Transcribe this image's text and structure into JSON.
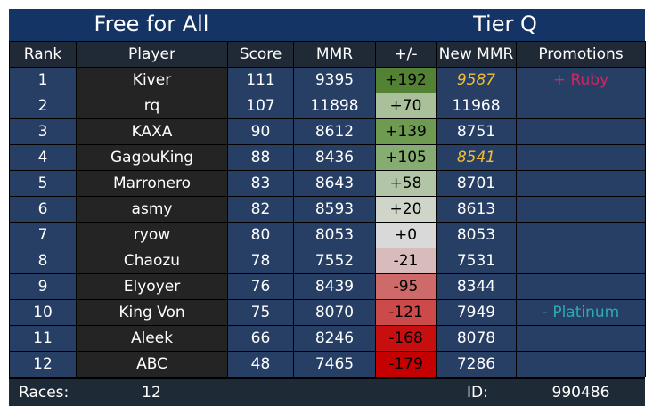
{
  "header": {
    "mode": "Free for All",
    "tier": "Tier Q"
  },
  "columns": [
    "Rank",
    "Player",
    "Score",
    "MMR",
    "+/-",
    "New MMR",
    "Promotions"
  ],
  "rows": [
    {
      "rank": "1",
      "player": "Kiver",
      "score": "111",
      "mmr": "9395",
      "delta": "+192",
      "new_mmr": "9587",
      "promotion": "+ Ruby",
      "delta_color": "#548235",
      "new_mmr_highlight": true,
      "promotion_color": "#d6245f"
    },
    {
      "rank": "2",
      "player": "rq",
      "score": "107",
      "mmr": "11898",
      "delta": "+70",
      "new_mmr": "11968",
      "promotion": "",
      "delta_color": "#a9c09a",
      "new_mmr_highlight": false,
      "promotion_color": ""
    },
    {
      "rank": "3",
      "player": "KAXA",
      "score": "90",
      "mmr": "8612",
      "delta": "+139",
      "new_mmr": "8751",
      "promotion": "",
      "delta_color": "#6e9a52",
      "new_mmr_highlight": false,
      "promotion_color": ""
    },
    {
      "rank": "4",
      "player": "GagouKing",
      "score": "88",
      "mmr": "8436",
      "delta": "+105",
      "new_mmr": "8541",
      "promotion": "",
      "delta_color": "#87ac72",
      "new_mmr_highlight": true,
      "promotion_color": ""
    },
    {
      "rank": "5",
      "player": "Marronero",
      "score": "83",
      "mmr": "8643",
      "delta": "+58",
      "new_mmr": "8701",
      "promotion": "",
      "delta_color": "#b3c5a7",
      "new_mmr_highlight": false,
      "promotion_color": ""
    },
    {
      "rank": "6",
      "player": "asmy",
      "score": "82",
      "mmr": "8593",
      "delta": "+20",
      "new_mmr": "8613",
      "promotion": "",
      "delta_color": "#cfd6c9",
      "new_mmr_highlight": false,
      "promotion_color": ""
    },
    {
      "rank": "7",
      "player": "ryow",
      "score": "80",
      "mmr": "8053",
      "delta": "+0",
      "new_mmr": "8053",
      "promotion": "",
      "delta_color": "#d9d9d9",
      "new_mmr_highlight": false,
      "promotion_color": ""
    },
    {
      "rank": "8",
      "player": "Chaozu",
      "score": "78",
      "mmr": "7552",
      "delta": "-21",
      "new_mmr": "7531",
      "promotion": "",
      "delta_color": "#d8bcbc",
      "new_mmr_highlight": false,
      "promotion_color": ""
    },
    {
      "rank": "9",
      "player": "Elyoyer",
      "score": "76",
      "mmr": "8439",
      "delta": "-95",
      "new_mmr": "8344",
      "promotion": "",
      "delta_color": "#cf6a6a",
      "new_mmr_highlight": false,
      "promotion_color": ""
    },
    {
      "rank": "10",
      "player": "King Von",
      "score": "75",
      "mmr": "8070",
      "delta": "-121",
      "new_mmr": "7949",
      "promotion": "- Platinum",
      "delta_color": "#cd4a4a",
      "new_mmr_highlight": false,
      "promotion_color": "#2eaab0"
    },
    {
      "rank": "11",
      "player": "Aleek",
      "score": "66",
      "mmr": "8246",
      "delta": "-168",
      "new_mmr": "8078",
      "promotion": "",
      "delta_color": "#c80f0f",
      "new_mmr_highlight": false,
      "promotion_color": ""
    },
    {
      "rank": "12",
      "player": "ABC",
      "score": "48",
      "mmr": "7465",
      "delta": "-179",
      "new_mmr": "7286",
      "promotion": "",
      "delta_color": "#c50000",
      "new_mmr_highlight": false,
      "promotion_color": ""
    }
  ],
  "footer": {
    "races_label": "Races:",
    "races_value": "12",
    "id_label": "ID:",
    "id_value": "990486"
  },
  "colors": {
    "title_bg": "#153466",
    "header_bg": "#202a36",
    "cell_bg": "#283f65",
    "player_bg": "#242424",
    "highlight": "#f2be30"
  }
}
